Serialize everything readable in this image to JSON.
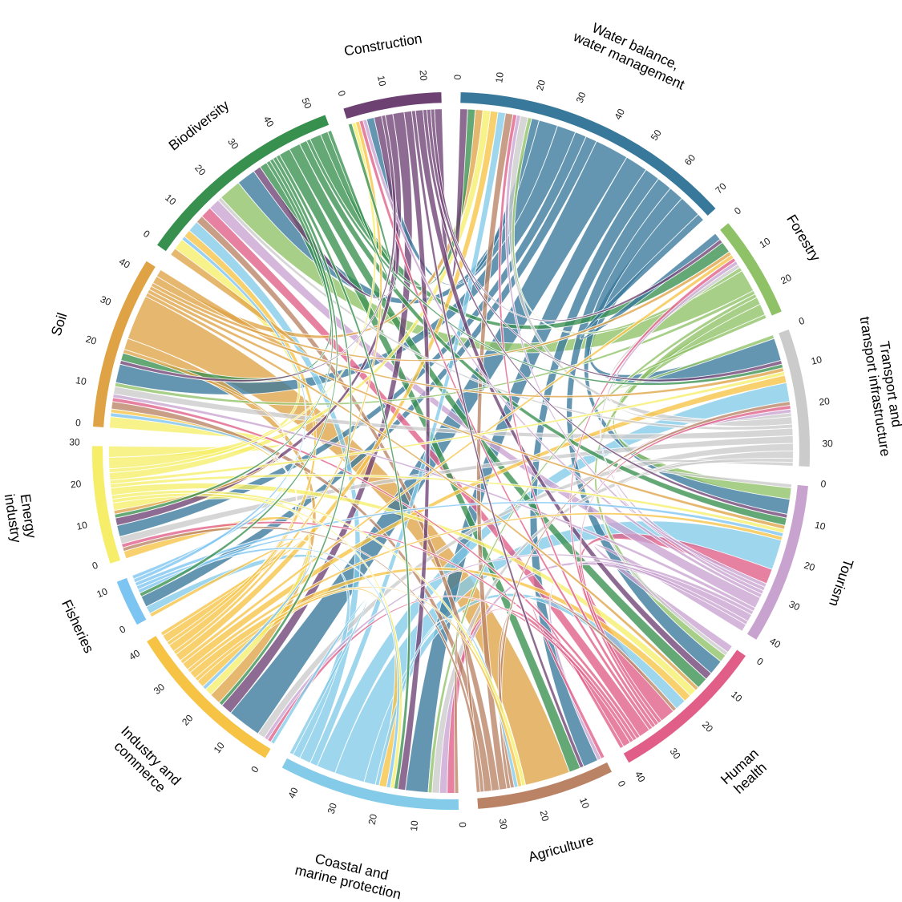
{
  "chart_data": {
    "type": "chord",
    "title": "",
    "axis_tick_interval": 10,
    "sectors": [
      {
        "name": "Water balance, water management",
        "label_lines": [
          "Water balance,",
          "water management"
        ],
        "color": "#38799B",
        "axis_end": 72
      },
      {
        "name": "Forestry",
        "label_lines": [
          "Forestry"
        ],
        "color": "#8FC266",
        "axis_end": 25
      },
      {
        "name": "Transport and transport infrastructure",
        "label_lines": [
          "Transport and",
          "transport infrastructure"
        ],
        "color": "#CBCBCB",
        "axis_end": 35
      },
      {
        "name": "Tourism",
        "label_lines": [
          "Tourism"
        ],
        "color": "#C8A3CF",
        "axis_end": 40
      },
      {
        "name": "Human health",
        "label_lines": [
          "Human",
          "health"
        ],
        "color": "#E05E87",
        "axis_end": 40
      },
      {
        "name": "Agriculture",
        "label_lines": [
          "Agriculture"
        ],
        "color": "#BA8365",
        "axis_end": 33
      },
      {
        "name": "Coastal and marine protection",
        "label_lines": [
          "Coastal and",
          "marine protection"
        ],
        "color": "#83CBE8",
        "axis_end": 45
      },
      {
        "name": "Industry and commerce",
        "label_lines": [
          "Industry and",
          "commerce"
        ],
        "color": "#F6C344",
        "axis_end": 42
      },
      {
        "name": "Fisheries",
        "label_lines": [
          "Fisheries"
        ],
        "color": "#7CC4F2",
        "axis_end": 12
      },
      {
        "name": "Energy industry",
        "label_lines": [
          "Energy",
          "industry"
        ],
        "color": "#F6EE69",
        "axis_end": 30
      },
      {
        "name": "Soil",
        "label_lines": [
          "Soil"
        ],
        "color": "#DFA345",
        "axis_end": 43
      },
      {
        "name": "Biodiversity",
        "label_lines": [
          "Biodiversity"
        ],
        "color": "#38904F",
        "axis_end": 55
      },
      {
        "name": "Construction",
        "label_lines": [
          "Construction"
        ],
        "color": "#6E4173",
        "axis_end": 25
      }
    ],
    "flows_src_dst_value": [
      [
        0,
        1,
        2
      ],
      [
        0,
        2,
        6
      ],
      [
        0,
        3,
        4
      ],
      [
        0,
        4,
        4
      ],
      [
        0,
        5,
        4
      ],
      [
        0,
        6,
        6
      ],
      [
        0,
        7,
        9
      ],
      [
        0,
        8,
        3
      ],
      [
        0,
        9,
        3
      ],
      [
        0,
        10,
        5
      ],
      [
        0,
        11,
        5
      ],
      [
        0,
        12,
        2
      ],
      [
        1,
        0,
        1
      ],
      [
        1,
        2,
        1
      ],
      [
        1,
        3,
        3
      ],
      [
        1,
        4,
        2
      ],
      [
        1,
        6,
        1
      ],
      [
        1,
        10,
        1
      ],
      [
        1,
        11,
        6
      ],
      [
        2,
        0,
        2
      ],
      [
        2,
        1,
        1
      ],
      [
        2,
        3,
        1
      ],
      [
        2,
        4,
        1
      ],
      [
        2,
        6,
        2
      ],
      [
        2,
        7,
        2
      ],
      [
        2,
        9,
        2
      ],
      [
        2,
        10,
        2
      ],
      [
        2,
        11,
        1
      ],
      [
        3,
        0,
        1
      ],
      [
        3,
        1,
        1
      ],
      [
        3,
        2,
        1
      ],
      [
        3,
        4,
        2
      ],
      [
        3,
        5,
        1
      ],
      [
        3,
        6,
        2
      ],
      [
        3,
        7,
        1
      ],
      [
        3,
        10,
        1
      ],
      [
        3,
        11,
        3
      ],
      [
        3,
        12,
        1
      ],
      [
        4,
        0,
        1
      ],
      [
        4,
        1,
        1
      ],
      [
        4,
        2,
        1
      ],
      [
        4,
        3,
        4
      ],
      [
        4,
        5,
        1
      ],
      [
        4,
        6,
        2
      ],
      [
        4,
        7,
        1
      ],
      [
        4,
        9,
        1
      ],
      [
        4,
        10,
        1
      ],
      [
        4,
        11,
        3
      ],
      [
        4,
        12,
        1
      ],
      [
        5,
        0,
        2
      ],
      [
        5,
        2,
        1
      ],
      [
        5,
        4,
        1
      ],
      [
        5,
        6,
        1
      ],
      [
        5,
        9,
        1
      ],
      [
        5,
        10,
        2
      ],
      [
        5,
        11,
        2
      ],
      [
        6,
        0,
        2
      ],
      [
        6,
        2,
        5
      ],
      [
        6,
        3,
        8
      ],
      [
        6,
        4,
        3
      ],
      [
        6,
        5,
        1
      ],
      [
        6,
        7,
        1
      ],
      [
        6,
        8,
        2
      ],
      [
        6,
        11,
        3
      ],
      [
        7,
        0,
        2
      ],
      [
        7,
        1,
        1
      ],
      [
        7,
        2,
        2
      ],
      [
        7,
        3,
        1
      ],
      [
        7,
        4,
        2
      ],
      [
        7,
        5,
        1
      ],
      [
        7,
        6,
        2
      ],
      [
        7,
        8,
        1
      ],
      [
        7,
        9,
        2
      ],
      [
        7,
        10,
        1
      ],
      [
        7,
        11,
        2
      ],
      [
        7,
        12,
        1
      ],
      [
        8,
        3,
        1
      ],
      [
        8,
        6,
        1
      ],
      [
        8,
        7,
        1
      ],
      [
        8,
        10,
        1
      ],
      [
        8,
        11,
        1
      ],
      [
        9,
        0,
        2
      ],
      [
        9,
        2,
        1
      ],
      [
        9,
        3,
        1
      ],
      [
        9,
        4,
        2
      ],
      [
        9,
        5,
        1
      ],
      [
        9,
        6,
        1
      ],
      [
        9,
        7,
        2
      ],
      [
        9,
        10,
        3
      ],
      [
        9,
        11,
        3
      ],
      [
        9,
        12,
        1
      ],
      [
        10,
        0,
        2
      ],
      [
        10,
        1,
        1
      ],
      [
        10,
        2,
        1
      ],
      [
        10,
        3,
        1
      ],
      [
        10,
        4,
        1
      ],
      [
        10,
        5,
        12
      ],
      [
        10,
        7,
        3
      ],
      [
        10,
        9,
        1
      ],
      [
        10,
        11,
        2
      ],
      [
        11,
        0,
        2
      ],
      [
        11,
        1,
        3
      ],
      [
        11,
        2,
        1
      ],
      [
        11,
        3,
        2
      ],
      [
        11,
        4,
        3
      ],
      [
        11,
        5,
        3
      ],
      [
        11,
        6,
        1
      ],
      [
        11,
        7,
        1
      ],
      [
        11,
        8,
        1
      ],
      [
        11,
        9,
        1
      ],
      [
        11,
        10,
        2
      ],
      [
        11,
        12,
        1
      ],
      [
        12,
        0,
        2
      ],
      [
        12,
        1,
        1
      ],
      [
        12,
        2,
        1
      ],
      [
        12,
        3,
        1
      ],
      [
        12,
        4,
        2
      ],
      [
        12,
        5,
        1
      ],
      [
        12,
        6,
        2
      ],
      [
        12,
        7,
        3
      ],
      [
        12,
        9,
        2
      ],
      [
        12,
        10,
        1
      ],
      [
        12,
        11,
        2
      ]
    ],
    "layout": {
      "start_angle_deg_from_top": 1.5,
      "sector_gap_deg": 3,
      "ribbon_opacity": 0.78,
      "legend": "none",
      "grid": "off",
      "chord_color_rule": "ribbon colored by source sector"
    }
  }
}
